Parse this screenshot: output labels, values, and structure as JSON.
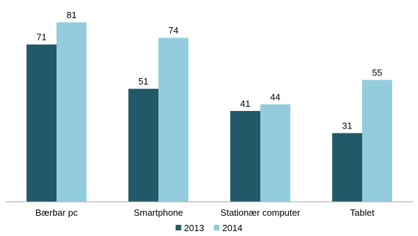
{
  "chart_data": {
    "type": "bar",
    "title": "",
    "xlabel": "",
    "ylabel": "",
    "categories": [
      "Bærbar pc",
      "Smartphone",
      "Stationær computer",
      "Tablet"
    ],
    "series": [
      {
        "name": "2013",
        "values": [
          71,
          51,
          41,
          31
        ],
        "color": "#215968"
      },
      {
        "name": "2014",
        "values": [
          81,
          74,
          44,
          55
        ],
        "color": "#93CDDD"
      }
    ],
    "ylim": [
      0,
      90
    ],
    "grid": false,
    "legend_position": "bottom"
  }
}
